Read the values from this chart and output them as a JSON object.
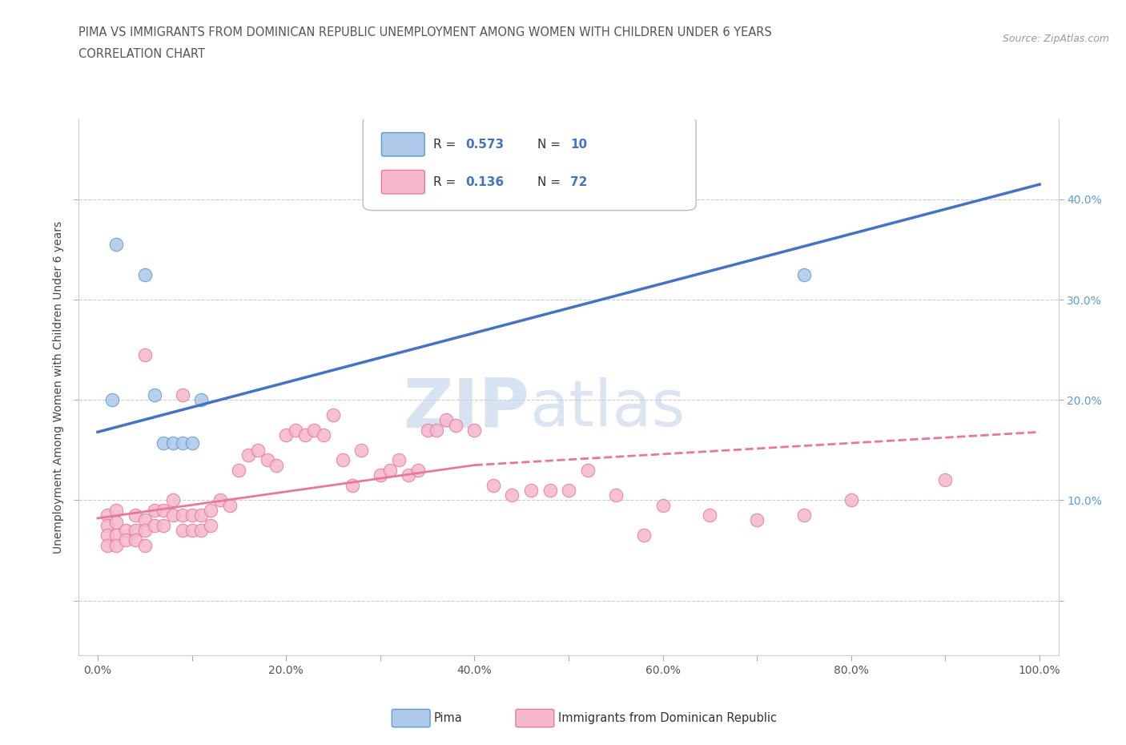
{
  "title_line1": "PIMA VS IMMIGRANTS FROM DOMINICAN REPUBLIC UNEMPLOYMENT AMONG WOMEN WITH CHILDREN UNDER 6 YEARS",
  "title_line2": "CORRELATION CHART",
  "source": "Source: ZipAtlas.com",
  "ylabel": "Unemployment Among Women with Children Under 6 years",
  "xlim": [
    -0.02,
    1.02
  ],
  "ylim": [
    -0.055,
    0.48
  ],
  "yticks": [
    0.0,
    0.1,
    0.2,
    0.3,
    0.4
  ],
  "ytick_labels_right": [
    "",
    "10.0%",
    "20.0%",
    "30.0%",
    "40.0%"
  ],
  "xticks": [
    0.0,
    0.1,
    0.2,
    0.3,
    0.4,
    0.5,
    0.6,
    0.7,
    0.8,
    0.9,
    1.0
  ],
  "xtick_labels": [
    "0.0%",
    "",
    "20.0%",
    "",
    "40.0%",
    "",
    "60.0%",
    "",
    "80.0%",
    "",
    "100.0%"
  ],
  "pima_color": "#adc8e8",
  "dr_color": "#f5b8cc",
  "pima_edge_color": "#5b9bd5",
  "dr_edge_color": "#e8789a",
  "pima_line_color": "#4472c4",
  "dr_line_solid_color": "#e8789a",
  "dr_line_dash_color": "#e8789a",
  "grid_color": "#cccccc",
  "background_color": "#ffffff",
  "pima_scatter_x": [
    0.02,
    0.05,
    0.06,
    0.07,
    0.08,
    0.09,
    0.1,
    0.11,
    0.75,
    0.015
  ],
  "pima_scatter_y": [
    0.355,
    0.325,
    0.205,
    0.157,
    0.157,
    0.157,
    0.157,
    0.2,
    0.325,
    0.2
  ],
  "pima_line_x0": 0.0,
  "pima_line_y0": 0.168,
  "pima_line_x1": 1.0,
  "pima_line_y1": 0.415,
  "dr_line_solid_x0": 0.0,
  "dr_line_solid_y0": 0.082,
  "dr_line_solid_x1": 0.4,
  "dr_line_solid_y1": 0.135,
  "dr_line_dash_x0": 0.4,
  "dr_line_dash_y0": 0.135,
  "dr_line_dash_x1": 1.0,
  "dr_line_dash_y1": 0.168,
  "dr_scatter_x": [
    0.01,
    0.01,
    0.01,
    0.01,
    0.02,
    0.02,
    0.02,
    0.02,
    0.03,
    0.03,
    0.04,
    0.04,
    0.04,
    0.05,
    0.05,
    0.05,
    0.06,
    0.06,
    0.07,
    0.07,
    0.08,
    0.08,
    0.09,
    0.09,
    0.1,
    0.1,
    0.11,
    0.11,
    0.12,
    0.12,
    0.13,
    0.14,
    0.15,
    0.16,
    0.17,
    0.18,
    0.19,
    0.2,
    0.21,
    0.22,
    0.23,
    0.24,
    0.25,
    0.26,
    0.27,
    0.28,
    0.3,
    0.31,
    0.32,
    0.33,
    0.34,
    0.35,
    0.36,
    0.37,
    0.38,
    0.4,
    0.42,
    0.44,
    0.46,
    0.48,
    0.5,
    0.52,
    0.55,
    0.58,
    0.6,
    0.65,
    0.7,
    0.75,
    0.8,
    0.9,
    0.05,
    0.09
  ],
  "dr_scatter_y": [
    0.085,
    0.075,
    0.065,
    0.055,
    0.09,
    0.078,
    0.065,
    0.055,
    0.07,
    0.06,
    0.085,
    0.07,
    0.06,
    0.08,
    0.07,
    0.055,
    0.09,
    0.075,
    0.09,
    0.075,
    0.1,
    0.085,
    0.085,
    0.07,
    0.085,
    0.07,
    0.085,
    0.07,
    0.09,
    0.075,
    0.1,
    0.095,
    0.13,
    0.145,
    0.15,
    0.14,
    0.135,
    0.165,
    0.17,
    0.165,
    0.17,
    0.165,
    0.185,
    0.14,
    0.115,
    0.15,
    0.125,
    0.13,
    0.14,
    0.125,
    0.13,
    0.17,
    0.17,
    0.18,
    0.175,
    0.17,
    0.115,
    0.105,
    0.11,
    0.11,
    0.11,
    0.13,
    0.105,
    0.065,
    0.095,
    0.085,
    0.08,
    0.085,
    0.1,
    0.12,
    0.245,
    0.205
  ],
  "watermark_zip": "ZIP",
  "watermark_atlas": "atlas",
  "legend_pima_label": "R = 0.573   N = 10",
  "legend_dr_label": "R = 0.136   N = 72",
  "bottom_legend_pima": "Pima",
  "bottom_legend_dr": "Immigrants from Dominican Republic"
}
